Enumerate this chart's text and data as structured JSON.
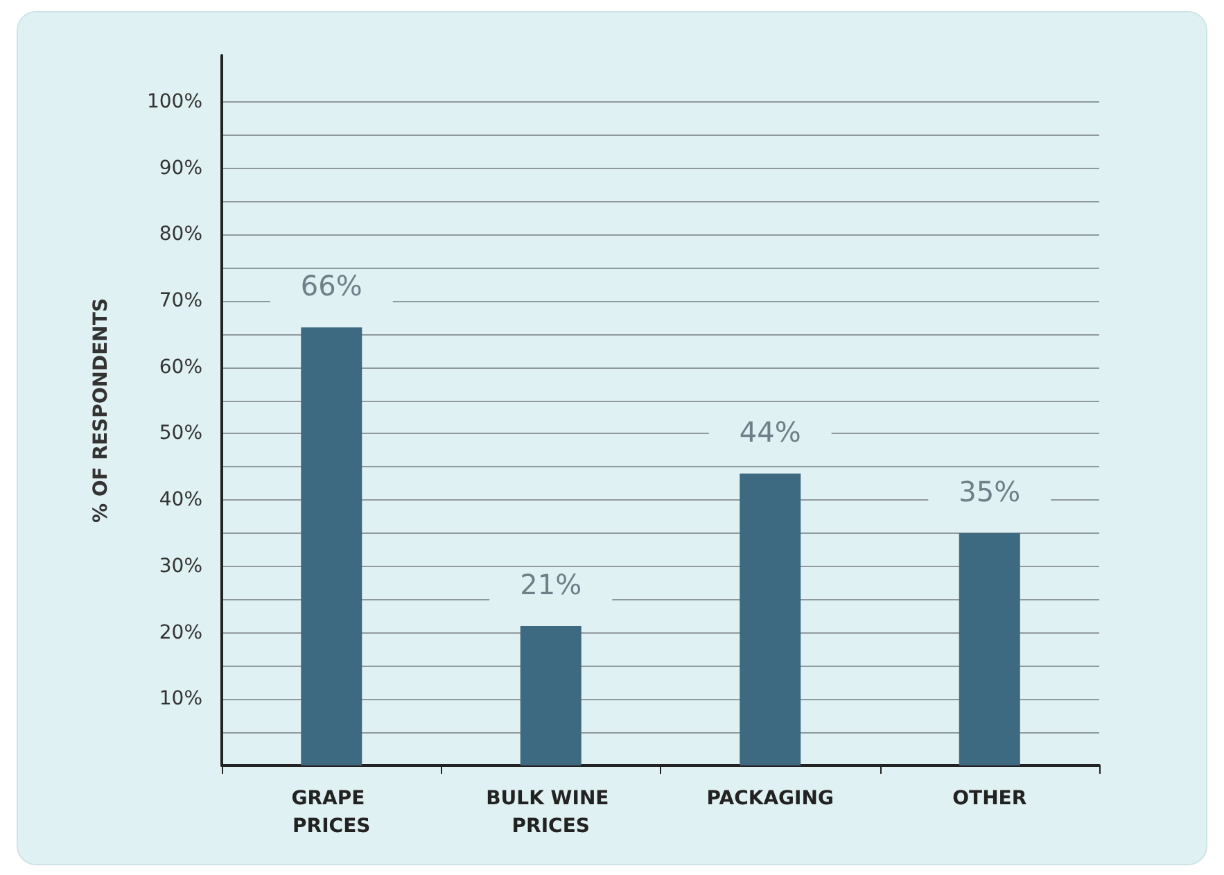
{
  "chart_data": {
    "type": "bar",
    "ylabel": "% OF RESPONDENTS",
    "categories": [
      "GRAPE PRICES",
      "BULK WINE PRICES",
      "PACKAGING",
      "OTHER"
    ],
    "values": [
      66,
      21,
      44,
      35
    ],
    "value_labels": [
      "66%",
      "21%",
      "44%",
      "35%"
    ],
    "color": "#3d6a80",
    "ylim": [
      0,
      107
    ],
    "yticks": [
      {
        "value": 0,
        "label": null
      },
      {
        "value": 5,
        "label": null
      },
      {
        "value": 10,
        "label": "10%"
      },
      {
        "value": 15,
        "label": null
      },
      {
        "value": 20,
        "label": "20%"
      },
      {
        "value": 25,
        "label": null
      },
      {
        "value": 30,
        "label": "30%"
      },
      {
        "value": 35,
        "label": null
      },
      {
        "value": 40,
        "label": "40%"
      },
      {
        "value": 45,
        "label": null
      },
      {
        "value": 50,
        "label": "50%"
      },
      {
        "value": 55,
        "label": null
      },
      {
        "value": 60,
        "label": "60%"
      },
      {
        "value": 65,
        "label": null
      },
      {
        "value": 70,
        "label": "70%"
      },
      {
        "value": 75,
        "label": null
      },
      {
        "value": 80,
        "label": "80%"
      },
      {
        "value": 85,
        "label": null
      },
      {
        "value": 90,
        "label": "90%"
      },
      {
        "value": 95,
        "label": null
      },
      {
        "value": 100,
        "label": "100%"
      }
    ],
    "grid": "y"
  }
}
